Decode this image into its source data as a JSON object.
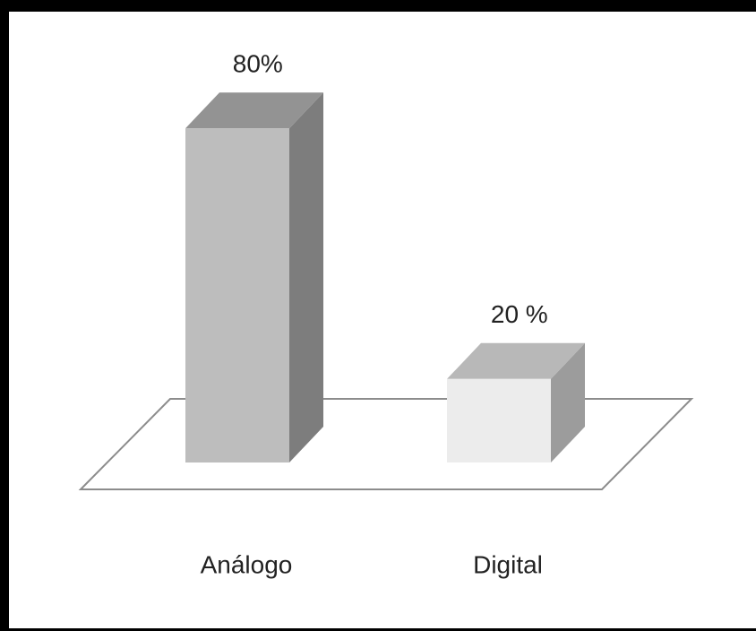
{
  "chart_data": {
    "type": "bar3d",
    "categories": [
      "Análogo",
      "Digital"
    ],
    "values": [
      80,
      20
    ],
    "value_labels": [
      "80%",
      "20 %"
    ],
    "colors": [
      "#bdbdbd",
      "#ececec"
    ]
  }
}
